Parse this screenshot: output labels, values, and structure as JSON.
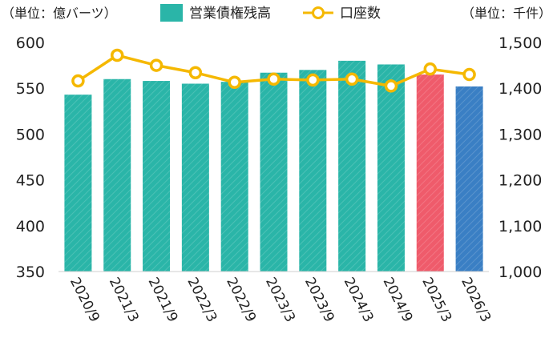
{
  "chart_data": {
    "type": "bar",
    "left_unit": "（単位：億バーツ）",
    "right_unit": "（単位：千件）",
    "legend": [
      {
        "name": "営業債権残高",
        "marker": "bar",
        "color": "#2ab5a8"
      },
      {
        "name": "口座数",
        "marker": "line-circle",
        "color": "#f5b800"
      }
    ],
    "categories": [
      "2020/9",
      "2021/3",
      "2021/9",
      "2022/3",
      "2022/9",
      "2023/3",
      "2023/9",
      "2024/3",
      "2024/9",
      "2025/3",
      "2026/3"
    ],
    "series": [
      {
        "name": "営業債権残高",
        "axis": "left",
        "type": "bar",
        "values": [
          543,
          560,
          558,
          555,
          557,
          567,
          570,
          580,
          576,
          565,
          552
        ],
        "colors": [
          "#2ab5a8",
          "#2ab5a8",
          "#2ab5a8",
          "#2ab5a8",
          "#2ab5a8",
          "#2ab5a8",
          "#2ab5a8",
          "#2ab5a8",
          "#2ab5a8",
          "#ef5b6b",
          "#3a7fc4"
        ]
      },
      {
        "name": "口座数",
        "axis": "right",
        "type": "line",
        "color": "#f5b800",
        "values": [
          1416,
          1472,
          1450,
          1434,
          1413,
          1420,
          1418,
          1420,
          1405,
          1442,
          1430
        ]
      }
    ],
    "y_left": {
      "min": 350,
      "max": 600,
      "ticks": [
        "350",
        "400",
        "450",
        "500",
        "550",
        "600"
      ]
    },
    "y_right": {
      "min": 1000,
      "max": 1500,
      "ticks": [
        "1,000",
        "1,100",
        "1,200",
        "1,300",
        "1,400",
        "1,500"
      ]
    },
    "grid": false,
    "legend_position": "top"
  }
}
